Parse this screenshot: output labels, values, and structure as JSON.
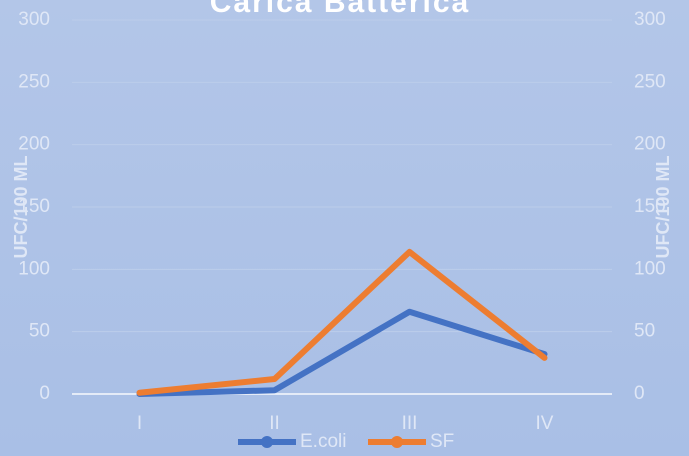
{
  "chart_data": {
    "type": "line",
    "title": "Carica Batterica",
    "categories": [
      "I",
      "II",
      "III",
      "IV"
    ],
    "series": [
      {
        "name": "E.coli",
        "color": "#4472c4",
        "values": [
          0,
          3,
          66,
          32
        ]
      },
      {
        "name": "SF",
        "color": "#ed7d31",
        "values": [
          1,
          12,
          114,
          29
        ]
      }
    ],
    "ylabel": "UFC/100 ML",
    "y2label": "UFC/100 ML",
    "ylim": [
      0,
      300
    ],
    "yticks": [
      0,
      50,
      100,
      150,
      200,
      250,
      300
    ],
    "y2lim": [
      0,
      300
    ],
    "y2ticks": [
      0,
      50,
      100,
      150,
      200,
      250,
      300
    ],
    "grid": true,
    "legend": "bottom"
  }
}
